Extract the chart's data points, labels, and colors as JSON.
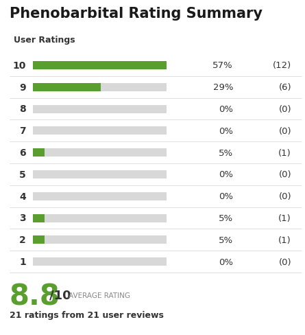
{
  "title": "Phenobarbital Rating Summary",
  "subtitle": "User Ratings",
  "ratings": [
    10,
    9,
    8,
    7,
    6,
    5,
    4,
    3,
    2,
    1
  ],
  "percentages": [
    57,
    29,
    0,
    0,
    5,
    0,
    0,
    5,
    5,
    0
  ],
  "counts": [
    12,
    6,
    0,
    0,
    1,
    0,
    0,
    1,
    1,
    0
  ],
  "pct_labels": [
    "57%",
    "29%",
    "0%",
    "0%",
    "5%",
    "0%",
    "0%",
    "5%",
    "5%",
    "0%"
  ],
  "count_labels": [
    "(12)",
    "(6)",
    "(0)",
    "(0)",
    "(1)",
    "(0)",
    "(0)",
    "(1)",
    "(1)",
    "(0)"
  ],
  "green_color": "#5a9e2f",
  "gray_color": "#d8d8d8",
  "bg_color": "#ffffff",
  "title_color": "#1a1a1a",
  "label_color": "#333333",
  "avg_rating": "8.8",
  "avg_suffix": "/10",
  "avg_label": "AVERAGE RATING",
  "total_label": "21 ratings from 21 user reviews",
  "avg_color": "#5a9e2f",
  "gray_text_color": "#888888",
  "sep_color": "#e0e0e0",
  "max_bar_pct": 57
}
